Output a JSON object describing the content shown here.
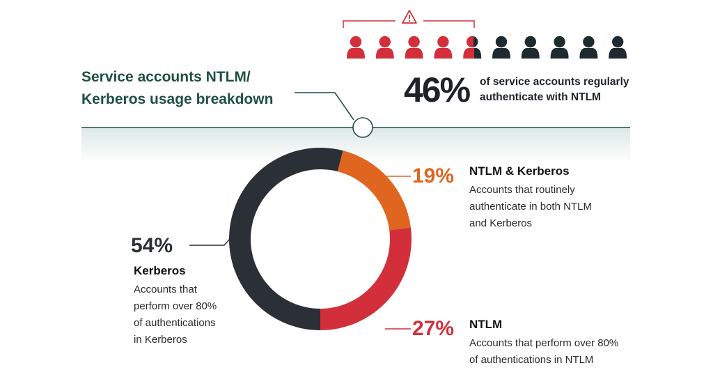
{
  "title_line1": "Service accounts NTLM/",
  "title_line2": "Kerberos usage breakdown",
  "headline": {
    "percent": "46%",
    "text_line1": "of service accounts regularly",
    "text_line2": "authenticate with NTLM",
    "icon": "warning-triangle-icon",
    "people_total": 10,
    "people_highlighted": 4.6
  },
  "colors": {
    "kerberos": "#2b2f36",
    "ntlm_kerberos": "#e0651e",
    "ntlm": "#d32f3a",
    "teal": "#1f4f43",
    "people_dark": "#1f2a30"
  },
  "chart_data": {
    "type": "pie",
    "donut": true,
    "slices": [
      {
        "label": "NTLM & Kerberos",
        "value": 19
      },
      {
        "label": "NTLM",
        "value": 27
      },
      {
        "label": "Kerberos",
        "value": 54
      }
    ]
  },
  "labels": {
    "ntlm_kerberos": {
      "percent": "19%",
      "title": "NTLM & Kerberos",
      "desc1": "Accounts that routinely",
      "desc2": "authenticate in both NTLM",
      "desc3": "and Kerberos"
    },
    "ntlm": {
      "percent": "27%",
      "title": "NTLM",
      "desc1": "Accounts that perform over 80%",
      "desc2": "of authentications in NTLM"
    },
    "kerberos": {
      "percent": "54%",
      "title": "Kerberos",
      "desc1": "Accounts that",
      "desc2": "perform over 80%",
      "desc3": "of authentications",
      "desc4": "in Kerberos"
    }
  }
}
